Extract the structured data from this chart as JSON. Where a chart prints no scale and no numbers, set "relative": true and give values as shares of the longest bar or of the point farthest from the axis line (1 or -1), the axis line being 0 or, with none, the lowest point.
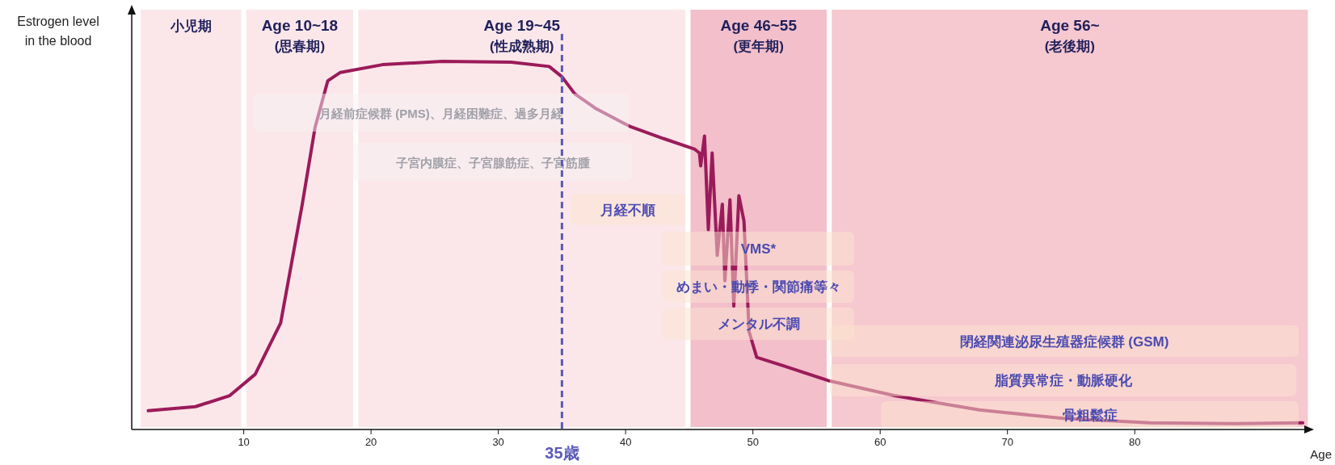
{
  "chart_data": {
    "type": "line",
    "relative": true,
    "xlabel": "Age",
    "ylabel": "Estrogen level\nin the blood",
    "xlim": [
      1.2,
      93.7
    ],
    "xticks": [
      10,
      20,
      30,
      40,
      50,
      60,
      70,
      80
    ],
    "line_style": "solid",
    "series": [
      {
        "color": "#9b1b5a",
        "x": [
          2.5,
          6.2,
          8.9,
          10.9,
          12.9,
          14.6,
          15.6,
          16.6,
          17.6,
          20.9,
          25.6,
          31.0,
          34.0,
          35.0,
          36.0,
          37.7,
          40.3,
          43.0,
          45.4,
          45.8,
          45.9,
          46.2,
          46.5,
          46.8,
          47.2,
          47.6,
          47.8,
          48.2,
          48.5,
          48.9,
          49.3,
          49.7,
          50.3,
          52.4,
          56.0,
          61.1,
          67.8,
          74.4,
          81.2,
          87.9,
          93.2
        ],
        "values": [
          0.051,
          0.062,
          0.092,
          0.15,
          0.289,
          0.612,
          0.82,
          0.947,
          0.97,
          0.991,
          1.0,
          0.998,
          0.986,
          0.958,
          0.912,
          0.871,
          0.824,
          0.79,
          0.762,
          0.751,
          0.716,
          0.797,
          0.543,
          0.751,
          0.473,
          0.612,
          0.404,
          0.624,
          0.335,
          0.635,
          0.566,
          0.266,
          0.196,
          0.173,
          0.132,
          0.092,
          0.053,
          0.03,
          0.018,
          0.016,
          0.018
        ]
      }
    ],
    "bands": [
      {
        "axis": "x",
        "from": 1.9,
        "to": 9.8,
        "label": "小児期",
        "color": "#fbe7ea"
      },
      {
        "axis": "x",
        "from": 10.2,
        "to": 18.6,
        "label": "Age 10~18\n(思春期)",
        "color": "#fbe7ea"
      },
      {
        "axis": "x",
        "from": 19.0,
        "to": 44.7,
        "label": "Age 19~45\n(性成熟期)",
        "color": "#fbe7ea"
      },
      {
        "axis": "x",
        "from": 45.1,
        "to": 55.8,
        "label": "Age 46~55\n(更年期)",
        "color": "#f2bfca"
      },
      {
        "axis": "x",
        "from": 56.2,
        "to": 93.6,
        "label": "Age 56~\n(老後期)",
        "color": "#f6c8cf"
      }
    ],
    "ref_lines": [
      {
        "axis": "x",
        "value": 35,
        "label": "35歳",
        "color": "#5a5ab8",
        "line_style": "dashed"
      }
    ],
    "annotations": [
      "月経前症候群 (PMS)、月経困難症、過多月経",
      "子宮内膜症、子宮腺筋症、子宮筋腫",
      "月経不順",
      "VMS*",
      "めまい・動悸・関節痛等々",
      "メンタル不調",
      "閉経関連泌尿生殖器症候群 (GSM)",
      "脂質異常症・動脈硬化",
      "骨粗鬆症"
    ]
  }
}
